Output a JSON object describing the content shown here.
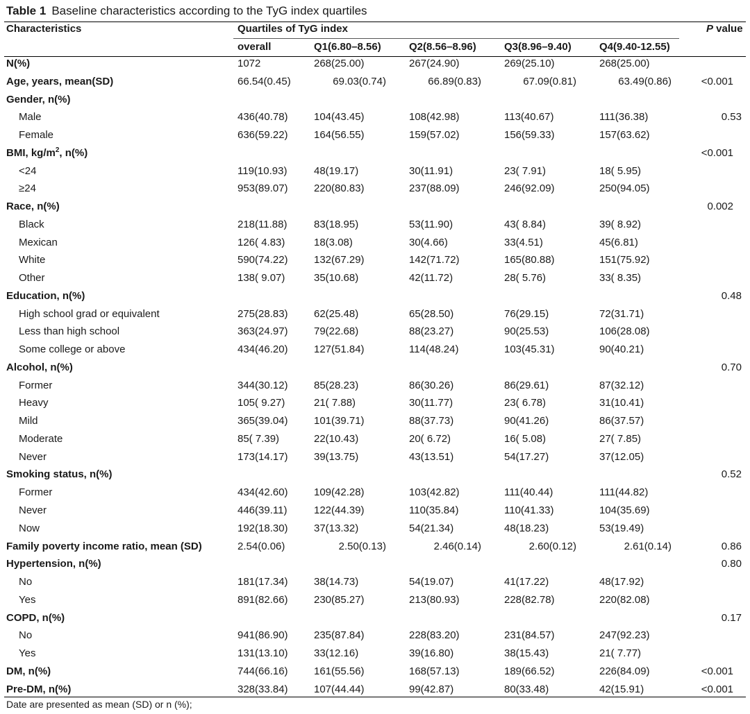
{
  "caption": {
    "label": "Table 1",
    "text": "Baseline characteristics according to the TyG index quartiles"
  },
  "header": {
    "characteristics": "Characteristics",
    "group": "Quartiles of TyG index",
    "p_value_italic": "P",
    "p_value_rest": " value",
    "columns": [
      "overall",
      "Q1(6.80–8.56)",
      "Q2(8.56–8.96)",
      "Q3(8.96–9.40)",
      "Q4(9.40-12.55)"
    ]
  },
  "rows": [
    {
      "label": "N(%)",
      "bold": true,
      "indent": false,
      "values": [
        "1072",
        "268(25.00)",
        "267(24.90)",
        "269(25.10)",
        "268(25.00)"
      ],
      "p": ""
    },
    {
      "label": "Age, years, mean(SD)",
      "bold": true,
      "indent": false,
      "values": [
        "66.54(0.45)",
        "69.03(0.74)",
        "66.89(0.83)",
        "67.09(0.81)",
        "63.49(0.86)"
      ],
      "p": "<0.001"
    },
    {
      "label": "Gender, n(%)",
      "bold": true,
      "indent": false,
      "values": [
        "",
        "",
        "",
        "",
        ""
      ],
      "p": ""
    },
    {
      "label": "Male",
      "bold": false,
      "indent": true,
      "values": [
        "436(40.78)",
        "104(43.45)",
        "108(42.98)",
        "113(40.67)",
        "111(36.38)"
      ],
      "p": "0.53"
    },
    {
      "label": "Female",
      "bold": false,
      "indent": true,
      "values": [
        "636(59.22)",
        "164(56.55)",
        "159(57.02)",
        "156(59.33)",
        "157(63.62)"
      ],
      "p": ""
    },
    {
      "label": "BMI, kg/m",
      "sup": "2",
      "label_tail": ", n(%)",
      "bold": true,
      "indent": false,
      "values": [
        "",
        "",
        "",
        "",
        ""
      ],
      "p": "<0.001"
    },
    {
      "label": "<24",
      "bold": false,
      "indent": true,
      "values": [
        "119(10.93)",
        "48(19.17)",
        "30(11.91)",
        "23( 7.91)",
        "18( 5.95)"
      ],
      "p": ""
    },
    {
      "label": "≥24",
      "bold": false,
      "indent": true,
      "values": [
        "953(89.07)",
        "220(80.83)",
        "237(88.09)",
        "246(92.09)",
        "250(94.05)"
      ],
      "p": ""
    },
    {
      "label": "Race, n(%)",
      "bold": true,
      "indent": false,
      "values": [
        "",
        "",
        "",
        "",
        ""
      ],
      "p": "0.002"
    },
    {
      "label": "Black",
      "bold": false,
      "indent": true,
      "values": [
        "218(11.88)",
        "83(18.95)",
        "53(11.90)",
        "43( 8.84)",
        "39( 8.92)"
      ],
      "p": ""
    },
    {
      "label": "Mexican",
      "bold": false,
      "indent": true,
      "values": [
        "126( 4.83)",
        "18(3.08)",
        "30(4.66)",
        "33(4.51)",
        "45(6.81)"
      ],
      "p": ""
    },
    {
      "label": "White",
      "bold": false,
      "indent": true,
      "values": [
        "590(74.22)",
        "132(67.29)",
        "142(71.72)",
        "165(80.88)",
        "151(75.92)"
      ],
      "p": ""
    },
    {
      "label": "Other",
      "bold": false,
      "indent": true,
      "values": [
        "138( 9.07)",
        "35(10.68)",
        "42(11.72)",
        "28( 5.76)",
        "33( 8.35)"
      ],
      "p": ""
    },
    {
      "label": "Education, n(%)",
      "bold": true,
      "indent": false,
      "values": [
        "",
        "",
        "",
        "",
        ""
      ],
      "p": "0.48"
    },
    {
      "label": "High school grad or equivalent",
      "bold": false,
      "indent": true,
      "values": [
        "275(28.83)",
        "62(25.48)",
        "65(28.50)",
        "76(29.15)",
        "72(31.71)"
      ],
      "p": ""
    },
    {
      "label": "Less than high school",
      "bold": false,
      "indent": true,
      "values": [
        "363(24.97)",
        "79(22.68)",
        "88(23.27)",
        "90(25.53)",
        "106(28.08)"
      ],
      "p": ""
    },
    {
      "label": "Some college or above",
      "bold": false,
      "indent": true,
      "values": [
        "434(46.20)",
        "127(51.84)",
        "114(48.24)",
        "103(45.31)",
        "90(40.21)"
      ],
      "p": ""
    },
    {
      "label": "Alcohol, n(%)",
      "bold": true,
      "indent": false,
      "values": [
        "",
        "",
        "",
        "",
        ""
      ],
      "p": "0.70"
    },
    {
      "label": "Former",
      "bold": false,
      "indent": true,
      "values": [
        "344(30.12)",
        "85(28.23)",
        "86(30.26)",
        "86(29.61)",
        "87(32.12)"
      ],
      "p": ""
    },
    {
      "label": "Heavy",
      "bold": false,
      "indent": true,
      "values": [
        "105( 9.27)",
        "21( 7.88)",
        "30(11.77)",
        "23( 6.78)",
        "31(10.41)"
      ],
      "p": ""
    },
    {
      "label": "Mild",
      "bold": false,
      "indent": true,
      "values": [
        "365(39.04)",
        "101(39.71)",
        "88(37.73)",
        "90(41.26)",
        "86(37.57)"
      ],
      "p": ""
    },
    {
      "label": "Moderate",
      "bold": false,
      "indent": true,
      "values": [
        "85( 7.39)",
        "22(10.43)",
        "20( 6.72)",
        "16( 5.08)",
        "27( 7.85)"
      ],
      "p": ""
    },
    {
      "label": "Never",
      "bold": false,
      "indent": true,
      "values": [
        "173(14.17)",
        "39(13.75)",
        "43(13.51)",
        "54(17.27)",
        "37(12.05)"
      ],
      "p": ""
    },
    {
      "label": "Smoking status, n(%)",
      "bold": true,
      "indent": false,
      "values": [
        "",
        "",
        "",
        "",
        ""
      ],
      "p": "0.52"
    },
    {
      "label": "Former",
      "bold": false,
      "indent": true,
      "values": [
        "434(42.60)",
        "109(42.28)",
        "103(42.82)",
        "111(40.44)",
        "111(44.82)"
      ],
      "p": ""
    },
    {
      "label": "Never",
      "bold": false,
      "indent": true,
      "values": [
        "446(39.11)",
        "122(44.39)",
        "110(35.84)",
        "110(41.33)",
        "104(35.69)"
      ],
      "p": ""
    },
    {
      "label": "Now",
      "bold": false,
      "indent": true,
      "values": [
        "192(18.30)",
        "37(13.32)",
        "54(21.34)",
        "48(18.23)",
        "53(19.49)"
      ],
      "p": ""
    },
    {
      "label": "Family poverty income ratio, mean (SD)",
      "bold": true,
      "indent": false,
      "values": [
        "2.54(0.06)",
        "2.50(0.13)",
        "2.46(0.14)",
        "2.60(0.12)",
        "2.61(0.14)"
      ],
      "p": "0.86"
    },
    {
      "label": "Hypertension, n(%)",
      "bold": true,
      "indent": false,
      "values": [
        "",
        "",
        "",
        "",
        ""
      ],
      "p": "0.80"
    },
    {
      "label": "No",
      "bold": false,
      "indent": true,
      "values": [
        "181(17.34)",
        "38(14.73)",
        "54(19.07)",
        "41(17.22)",
        "48(17.92)"
      ],
      "p": ""
    },
    {
      "label": "Yes",
      "bold": false,
      "indent": true,
      "values": [
        "891(82.66)",
        "230(85.27)",
        "213(80.93)",
        "228(82.78)",
        "220(82.08)"
      ],
      "p": ""
    },
    {
      "label": "COPD, n(%)",
      "bold": true,
      "indent": false,
      "values": [
        "",
        "",
        "",
        "",
        ""
      ],
      "p": "0.17"
    },
    {
      "label": "No",
      "bold": false,
      "indent": true,
      "values": [
        "941(86.90)",
        "235(87.84)",
        "228(83.20)",
        "231(84.57)",
        "247(92.23)"
      ],
      "p": ""
    },
    {
      "label": "Yes",
      "bold": false,
      "indent": true,
      "values": [
        "131(13.10)",
        "33(12.16)",
        "39(16.80)",
        "38(15.43)",
        "21( 7.77)"
      ],
      "p": ""
    },
    {
      "label": "DM, n(%)",
      "bold": true,
      "indent": false,
      "values": [
        "744(66.16)",
        "161(55.56)",
        "168(57.13)",
        "189(66.52)",
        "226(84.09)"
      ],
      "p": "<0.001"
    },
    {
      "label": "Pre-DM, n(%)",
      "bold": true,
      "indent": false,
      "values": [
        "328(33.84)",
        "107(44.44)",
        "99(42.87)",
        "80(33.48)",
        "42(15.91)"
      ],
      "p": "<0.001"
    }
  ],
  "footnote": "Date are presented as mean (SD) or n (%);"
}
